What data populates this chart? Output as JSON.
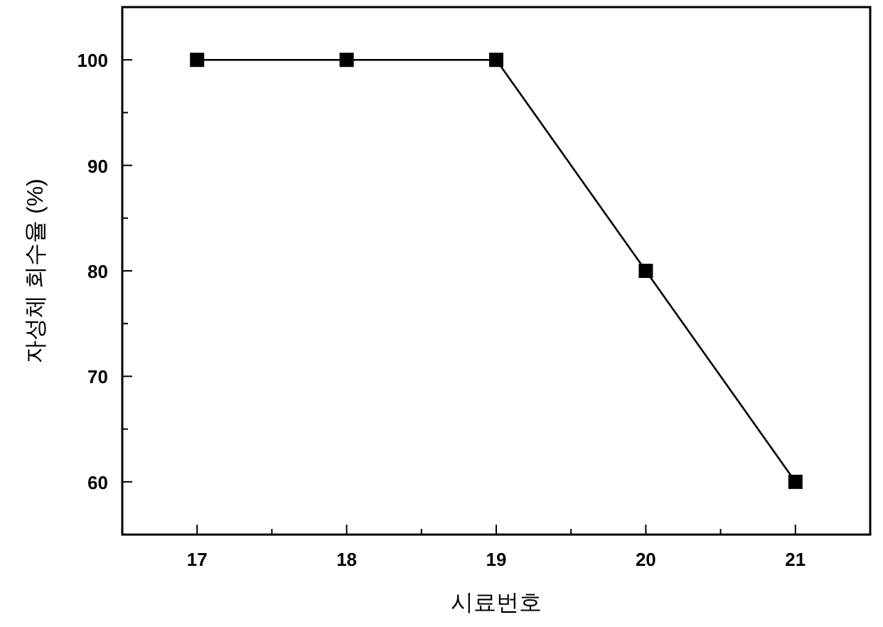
{
  "chart_data": {
    "type": "line",
    "xlabel": "시료번호",
    "ylabel": "자성체 회수율 (%)",
    "x": [
      17,
      18,
      19,
      20,
      21
    ],
    "series": [
      {
        "color": "#000000",
        "values": [
          100,
          100,
          100,
          80,
          60
        ]
      }
    ],
    "marker": "square",
    "line_style": "solid",
    "grid": false,
    "xlim": [
      16.5,
      21.5
    ],
    "xticks": [
      17,
      {
        "value": 17.5,
        "label": null
      },
      18,
      {
        "value": 18.5,
        "label": null
      },
      19,
      {
        "value": 19.5,
        "label": null
      },
      20,
      {
        "value": 20.5,
        "label": null
      },
      21
    ],
    "ylim": [
      55,
      105
    ],
    "yticks": [
      {
        "value": 55,
        "label": null
      },
      60,
      {
        "value": 65,
        "label": null
      },
      70,
      {
        "value": 75,
        "label": null
      },
      80,
      {
        "value": 85,
        "label": null
      },
      90,
      {
        "value": 95,
        "label": null
      },
      100
    ]
  }
}
